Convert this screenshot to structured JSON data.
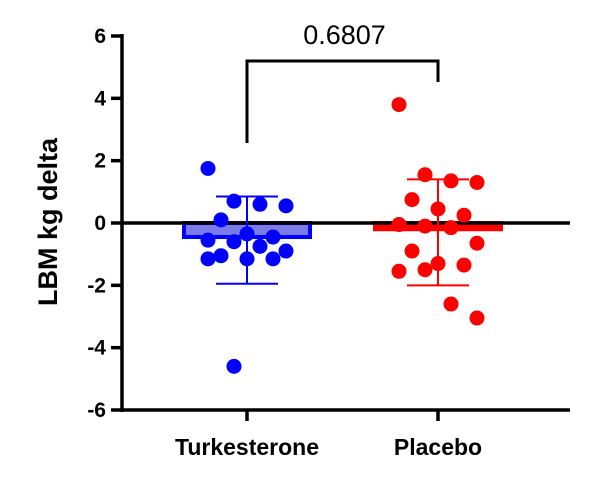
{
  "chart_data": {
    "type": "scatter",
    "subtype": "bar-with-dots-mean-sd",
    "ylabel": "LBM kg delta",
    "xlabel": "",
    "ylim": [
      -6,
      6
    ],
    "yticks": [
      "6",
      "4",
      "2",
      "0",
      "-2",
      "-4",
      "-6"
    ],
    "categories": [
      "Turkesterone",
      "Placebo"
    ],
    "series": [
      {
        "name": "Turkesterone",
        "color": "#0000ff",
        "bar_color": "#7a7ae8",
        "mean": -0.45,
        "sd_upper": 0.85,
        "sd_lower": -1.95,
        "points": [
          1.75,
          0.7,
          0.6,
          0.55,
          0.1,
          -0.35,
          -0.45,
          -0.55,
          -0.6,
          -0.75,
          -0.9,
          -1.05,
          -1.15,
          -1.15,
          -1.15,
          -4.6
        ]
      },
      {
        "name": "Placebo",
        "color": "#ff0000",
        "bar_color": "#ff0000",
        "mean": -0.2,
        "sd_upper": 1.4,
        "sd_lower": -2.0,
        "points": [
          3.8,
          1.55,
          1.35,
          1.3,
          0.75,
          0.45,
          0.25,
          -0.05,
          -0.1,
          -0.15,
          -0.65,
          -0.9,
          -1.3,
          -1.35,
          -1.55,
          -1.5,
          -2.6,
          -3.05
        ]
      }
    ],
    "annotations": [
      {
        "type": "significance-bracket",
        "between": [
          "Turkesterone",
          "Placebo"
        ],
        "text": "0.6807"
      }
    ],
    "grid": false,
    "legend": "none"
  }
}
